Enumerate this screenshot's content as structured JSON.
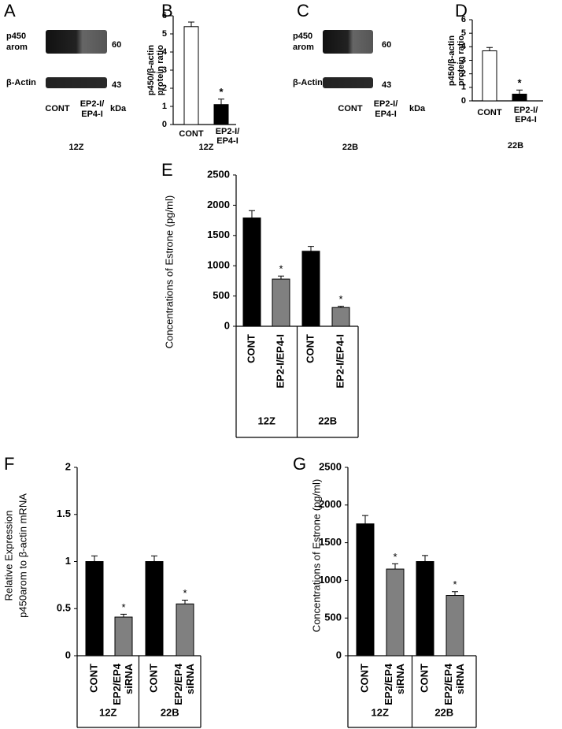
{
  "blots": [
    {
      "panel": "A",
      "bands": [
        {
          "label": [
            "p450",
            "arom"
          ],
          "kda": "60"
        },
        {
          "label": [
            "β-Actin"
          ],
          "kda": "43"
        }
      ],
      "lanes": [
        [
          "CONT"
        ],
        [
          "EP2-I/",
          "EP4-I"
        ]
      ],
      "unit": "kDa",
      "cell": "12Z"
    },
    {
      "panel": "C",
      "bands": [
        {
          "label": [
            "p450",
            "arom"
          ],
          "kda": "60"
        },
        {
          "label": [
            "β-Actin"
          ],
          "kda": "43"
        }
      ],
      "lanes": [
        [
          "CONT"
        ],
        [
          "EP2-I/",
          "EP4-I"
        ]
      ],
      "unit": "kDa",
      "cell": "22B"
    }
  ],
  "chart_data": [
    {
      "type": "bar",
      "panel": "B",
      "ylabel": [
        "p450/β-actin",
        "protein  ratio"
      ],
      "categories": [
        [
          "CONT"
        ],
        [
          "EP2-I/",
          "EP4-I"
        ]
      ],
      "values": [
        5.4,
        1.1
      ],
      "errors": [
        0.25,
        0.3
      ],
      "colors": [
        "#ffffff",
        "#000000"
      ],
      "significance": [
        null,
        "*"
      ],
      "cell": "12Z",
      "ylim": [
        0,
        6
      ],
      "yticks": [
        0,
        1,
        2,
        3,
        4,
        5,
        6
      ]
    },
    {
      "type": "bar",
      "panel": "D",
      "ylabel": [
        "p450/β-actin",
        "protein  ratio"
      ],
      "categories": [
        [
          "CONT"
        ],
        [
          "EP2-I/",
          "EP4-I"
        ]
      ],
      "values": [
        3.7,
        0.5
      ],
      "errors": [
        0.25,
        0.3
      ],
      "colors": [
        "#ffffff",
        "#000000"
      ],
      "significance": [
        null,
        "*"
      ],
      "cell": "22B",
      "ylim": [
        0,
        6
      ],
      "yticks": [
        0,
        1,
        2,
        3,
        4,
        5,
        6
      ]
    },
    {
      "type": "bar",
      "panel": "E",
      "ylabel": [
        "Concentrations of Estrone (pg/ml)"
      ],
      "categories": [
        [
          "CONT"
        ],
        [
          "EP2-I/EP4-I"
        ],
        [
          "CONT"
        ],
        [
          "EP2-I/EP4-I"
        ]
      ],
      "groups": [
        "12Z",
        "22B"
      ],
      "values": [
        1790,
        780,
        1240,
        310
      ],
      "errors": [
        120,
        50,
        80,
        20
      ],
      "colors": [
        "#000000",
        "#808080",
        "#000000",
        "#808080"
      ],
      "significance": [
        null,
        "*",
        null,
        "*"
      ],
      "ylim": [
        0,
        2500
      ],
      "yticks": [
        0,
        500,
        1000,
        1500,
        2000,
        2500
      ]
    },
    {
      "type": "bar",
      "panel": "F",
      "ylabel": [
        "Relative Expression",
        "p450arom to β-actin mRNA"
      ],
      "categories": [
        [
          "CONT"
        ],
        [
          "EP2/EP4",
          "siRNA"
        ],
        [
          "CONT"
        ],
        [
          "EP2/EP4",
          "siRNA"
        ]
      ],
      "groups": [
        "12Z",
        "22B"
      ],
      "values": [
        1,
        0.41,
        1,
        0.55
      ],
      "errors": [
        0.06,
        0.03,
        0.06,
        0.04
      ],
      "colors": [
        "#000000",
        "#808080",
        "#000000",
        "#808080"
      ],
      "significance": [
        null,
        "*",
        null,
        "*"
      ],
      "ylim": [
        0,
        2
      ],
      "yticks": [
        0,
        0.5,
        1,
        1.5,
        2
      ]
    },
    {
      "type": "bar",
      "panel": "G",
      "ylabel": [
        "Concentrations of Estrone (pg/ml)"
      ],
      "categories": [
        [
          "CONT"
        ],
        [
          "EP2/EP4",
          "siRNA"
        ],
        [
          "CONT"
        ],
        [
          "EP2/EP4",
          "siRNA"
        ]
      ],
      "groups": [
        "12Z",
        "22B"
      ],
      "values": [
        1750,
        1150,
        1250,
        800
      ],
      "errors": [
        110,
        70,
        80,
        50
      ],
      "colors": [
        "#000000",
        "#808080",
        "#000000",
        "#808080"
      ],
      "significance": [
        null,
        "*",
        null,
        "*"
      ],
      "ylim": [
        0,
        2500
      ],
      "yticks": [
        0,
        500,
        1000,
        1500,
        2000,
        2500
      ]
    }
  ]
}
